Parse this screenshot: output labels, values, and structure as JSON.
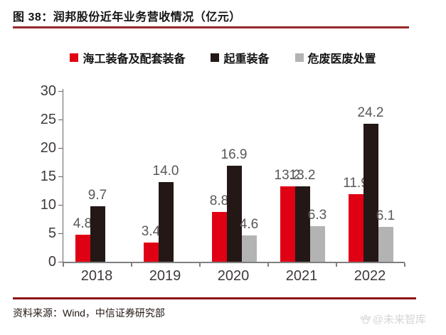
{
  "page": {
    "title": "图 38：润邦股份近年业务营收情况（亿元）"
  },
  "footer": {
    "source": "资料来源：Wind，中信证券研究部",
    "watermark": "@未来智库"
  },
  "colors": {
    "title_rule": "#96282a",
    "footer_rule": "#8c1216",
    "axis_line": "#7f7f7f",
    "axis_text": "#3e3a39",
    "data_label": "#595757",
    "watermark": "#d5d5d5"
  },
  "chart_data": {
    "type": "bar",
    "title": "润邦股份近年业务营收情况（亿元）",
    "xlabel": "",
    "ylabel": "",
    "categories": [
      "2018",
      "2019",
      "2020",
      "2021",
      "2022"
    ],
    "series": [
      {
        "name": "海工装备及配套装备",
        "color": "#e00013",
        "values": [
          4.8,
          3.4,
          8.8,
          13.2,
          11.9
        ]
      },
      {
        "name": "起重装备",
        "color": "#231815",
        "values": [
          9.7,
          14.0,
          16.9,
          13.2,
          24.2
        ]
      },
      {
        "name": "危废医废处置",
        "color": "#b3b3b3",
        "values": [
          null,
          null,
          4.6,
          6.3,
          6.1
        ]
      }
    ],
    "ylim": [
      0,
      30
    ],
    "yticks": [
      0,
      5,
      10,
      15,
      20,
      25,
      30
    ],
    "grid": false,
    "legend_position": "top",
    "data_labels": true
  }
}
